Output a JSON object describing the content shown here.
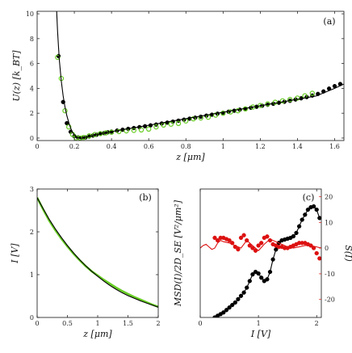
{
  "chart_data": [
    {
      "type": "scatter",
      "panel_label": "(a)",
      "xlabel": "z [μm]",
      "ylabel": "U(z) [k_BT]",
      "xlim": [
        0,
        1.65
      ],
      "ylim": [
        -0.2,
        10.2
      ],
      "xticks": [
        0,
        0.2,
        0.4,
        0.6,
        0.8,
        1,
        1.2,
        1.4,
        1.6
      ],
      "xtick_labels": [
        "0",
        "0.2",
        "0.4",
        "0.6",
        "0.8",
        "1",
        "1.2",
        "1.4",
        "1.6"
      ],
      "yticks": [
        0,
        2,
        4,
        6,
        8,
        10
      ],
      "ytick_labels": [
        "0",
        "2",
        "4",
        "6",
        "8",
        "10"
      ],
      "grid": false,
      "series": [
        {
          "color": "#000000",
          "marker": "filled-circle",
          "x": [
            0.115,
            0.14,
            0.16,
            0.18,
            0.2,
            0.22,
            0.24,
            0.26,
            0.28,
            0.3,
            0.32,
            0.34,
            0.36,
            0.38,
            0.4,
            0.43,
            0.46,
            0.49,
            0.52,
            0.55,
            0.58,
            0.61,
            0.64,
            0.67,
            0.7,
            0.73,
            0.76,
            0.79,
            0.82,
            0.85,
            0.88,
            0.91,
            0.94,
            0.97,
            1.0,
            1.03,
            1.06,
            1.09,
            1.12,
            1.15,
            1.18,
            1.21,
            1.24,
            1.27,
            1.3,
            1.33,
            1.36,
            1.39,
            1.42,
            1.45,
            1.48,
            1.51,
            1.54,
            1.57,
            1.6,
            1.63
          ],
          "y": [
            6.6,
            2.9,
            1.2,
            0.5,
            0.15,
            0.05,
            0.02,
            0.05,
            0.12,
            0.2,
            0.27,
            0.33,
            0.4,
            0.46,
            0.52,
            0.6,
            0.67,
            0.74,
            0.81,
            0.88,
            0.95,
            1.02,
            1.09,
            1.17,
            1.24,
            1.32,
            1.4,
            1.48,
            1.56,
            1.64,
            1.72,
            1.8,
            1.88,
            1.96,
            2.04,
            2.12,
            2.2,
            2.28,
            2.36,
            2.44,
            2.52,
            2.6,
            2.68,
            2.76,
            2.84,
            2.92,
            3.0,
            3.1,
            3.2,
            3.3,
            3.42,
            3.55,
            3.75,
            3.98,
            4.18,
            4.35
          ]
        },
        {
          "color": "#66cc22",
          "marker": "open-circle",
          "x": [
            0.11,
            0.13,
            0.15,
            0.17,
            0.19,
            0.21,
            0.23,
            0.25,
            0.28,
            0.31,
            0.34,
            0.37,
            0.4,
            0.44,
            0.48,
            0.52,
            0.56,
            0.6,
            0.64,
            0.68,
            0.72,
            0.76,
            0.8,
            0.84,
            0.88,
            0.92,
            0.96,
            1.0,
            1.04,
            1.08,
            1.12,
            1.16,
            1.2,
            1.24,
            1.28,
            1.32,
            1.36,
            1.4,
            1.44,
            1.48
          ],
          "y": [
            6.5,
            4.8,
            2.2,
            0.9,
            0.3,
            0.02,
            0.0,
            0.05,
            0.18,
            0.28,
            0.36,
            0.42,
            0.47,
            0.52,
            0.58,
            0.62,
            0.66,
            0.72,
            0.9,
            1.05,
            1.12,
            1.18,
            1.38,
            1.55,
            1.62,
            1.68,
            1.85,
            2.0,
            2.1,
            2.2,
            2.35,
            2.5,
            2.62,
            2.75,
            2.88,
            3.0,
            3.1,
            3.22,
            3.4,
            3.6
          ]
        },
        {
          "color": "#000000",
          "marker": "line",
          "x": [
            0.105,
            0.11,
            0.115,
            0.12,
            0.13,
            0.14,
            0.15,
            0.16,
            0.17,
            0.18,
            0.19,
            0.2,
            0.21,
            0.22,
            0.23,
            0.24,
            0.26,
            0.28,
            0.3,
            0.35,
            0.4,
            0.5,
            0.6,
            0.7,
            0.8,
            0.9,
            1.0,
            1.1,
            1.2,
            1.3,
            1.4,
            1.5,
            1.6,
            1.65
          ],
          "y": [
            10.2,
            8.6,
            7.3,
            6.2,
            4.6,
            3.4,
            2.5,
            1.8,
            1.25,
            0.8,
            0.48,
            0.25,
            0.1,
            0.03,
            0.0,
            0.0,
            0.06,
            0.13,
            0.2,
            0.37,
            0.52,
            0.78,
            1.03,
            1.3,
            1.56,
            1.82,
            2.08,
            2.34,
            2.6,
            2.86,
            3.12,
            3.38,
            4.0,
            4.35
          ]
        }
      ]
    },
    {
      "type": "line",
      "panel_label": "(b)",
      "xlabel": "z [μm]",
      "ylabel": "I [V]",
      "xlim": [
        0,
        2
      ],
      "ylim": [
        0,
        3
      ],
      "xticks": [
        0,
        0.5,
        1,
        1.5,
        2
      ],
      "xtick_labels": [
        "0",
        "0.5",
        "1",
        "1.5",
        "2"
      ],
      "yticks": [
        0,
        1,
        2,
        3
      ],
      "ytick_labels": [
        "0",
        "1",
        "2",
        "3"
      ],
      "grid": false,
      "series": [
        {
          "color": "#66cc22",
          "marker": "thick-line",
          "x": [
            0,
            0.1,
            0.2,
            0.3,
            0.4,
            0.5,
            0.6,
            0.7,
            0.8,
            0.9,
            1.0,
            1.1,
            1.2,
            1.3,
            1.4,
            1.5,
            1.6,
            1.7,
            1.8,
            1.9,
            2.0
          ],
          "y": [
            2.8,
            2.52,
            2.26,
            2.04,
            1.84,
            1.66,
            1.49,
            1.34,
            1.2,
            1.08,
            0.98,
            0.88,
            0.79,
            0.7,
            0.62,
            0.55,
            0.48,
            0.42,
            0.36,
            0.3,
            0.25
          ]
        },
        {
          "color": "#000000",
          "marker": "line",
          "x": [
            0,
            0.1,
            0.2,
            0.3,
            0.4,
            0.5,
            0.6,
            0.7,
            0.8,
            0.9,
            1.0,
            1.1,
            1.2,
            1.3,
            1.4,
            1.5,
            1.6,
            1.7,
            1.8,
            1.9,
            2.0
          ],
          "y": [
            2.8,
            2.54,
            2.29,
            2.07,
            1.87,
            1.68,
            1.51,
            1.35,
            1.21,
            1.08,
            0.96,
            0.85,
            0.75,
            0.66,
            0.58,
            0.51,
            0.45,
            0.39,
            0.34,
            0.29,
            0.24
          ]
        }
      ]
    },
    {
      "type": "scatter",
      "panel_label": "(c)",
      "xlabel": "I [V]",
      "ylabel": "MSD(I)/2D_SE [V²/μm²]",
      "ylabel_right": "S(I)",
      "xlim": [
        0,
        2.08
      ],
      "ylim": [
        0,
        1.55
      ],
      "ylim_right": [
        -27,
        23
      ],
      "xticks": [
        0,
        1,
        2
      ],
      "xtick_labels": [
        "0",
        "1",
        "2"
      ],
      "yticks_right": [
        -20,
        -10,
        0,
        10,
        20
      ],
      "ytick_labels_right": [
        "-20",
        "-10",
        "0",
        "10",
        "20"
      ],
      "grid": false,
      "series": [
        {
          "color": "#000000",
          "marker": "filled-circle-line",
          "axis": "left",
          "x": [
            0.25,
            0.3,
            0.35,
            0.4,
            0.45,
            0.5,
            0.55,
            0.6,
            0.65,
            0.7,
            0.75,
            0.8,
            0.85,
            0.9,
            0.95,
            1.0,
            1.05,
            1.1,
            1.15,
            1.2,
            1.25,
            1.3,
            1.35,
            1.4,
            1.45,
            1.5,
            1.55,
            1.6,
            1.65,
            1.7,
            1.75,
            1.8,
            1.85,
            1.9,
            1.95,
            2.0,
            2.05
          ],
          "y": [
            0.0,
            0.02,
            0.04,
            0.06,
            0.09,
            0.12,
            0.15,
            0.18,
            0.22,
            0.26,
            0.3,
            0.36,
            0.44,
            0.52,
            0.55,
            0.53,
            0.48,
            0.44,
            0.46,
            0.55,
            0.7,
            0.82,
            0.9,
            0.93,
            0.94,
            0.95,
            0.96,
            0.98,
            1.02,
            1.1,
            1.18,
            1.24,
            1.3,
            1.33,
            1.34,
            1.3,
            1.2
          ]
        },
        {
          "color": "#dd1111",
          "marker": "filled-circle",
          "axis": "right",
          "x": [
            0.25,
            0.3,
            0.35,
            0.4,
            0.45,
            0.5,
            0.55,
            0.6,
            0.65,
            0.7,
            0.75,
            0.8,
            0.85,
            0.9,
            0.95,
            1.0,
            1.05,
            1.1,
            1.15,
            1.2,
            1.25,
            1.3,
            1.35,
            1.4,
            1.45,
            1.5,
            1.55,
            1.6,
            1.65,
            1.7,
            1.75,
            1.8,
            1.85,
            1.9,
            1.95,
            2.0,
            2.05
          ],
          "y": [
            4.0,
            3.0,
            4.0,
            4.0,
            3.5,
            3.0,
            2.0,
            0.5,
            -0.5,
            4.0,
            5.0,
            3.0,
            1.0,
            0.0,
            -1.0,
            1.0,
            2.0,
            4.0,
            4.5,
            3.0,
            1.5,
            1.0,
            0.5,
            0.5,
            0.0,
            0.0,
            0.5,
            1.0,
            1.5,
            2.0,
            2.0,
            2.0,
            1.5,
            1.0,
            0.0,
            -2.0,
            -4.0
          ]
        },
        {
          "color": "#dd1111",
          "marker": "line",
          "axis": "right",
          "x": [
            0.0,
            0.05,
            0.1,
            0.15,
            0.2,
            0.25,
            0.3,
            0.35,
            0.4,
            0.5,
            0.6,
            0.7,
            0.8,
            0.9,
            1.0,
            1.1,
            1.2,
            1.3,
            1.4,
            1.5,
            1.6,
            1.7,
            1.8,
            1.9,
            2.0,
            2.08
          ],
          "y": [
            0.0,
            1.0,
            1.5,
            0.5,
            -0.5,
            0.0,
            2.0,
            3.0,
            2.5,
            2.0,
            1.0,
            0.0,
            3.0,
            1.0,
            -1.0,
            1.5,
            3.5,
            2.5,
            1.5,
            0.5,
            0.0,
            0.5,
            1.0,
            1.0,
            0.5,
            0.0
          ]
        }
      ]
    }
  ]
}
